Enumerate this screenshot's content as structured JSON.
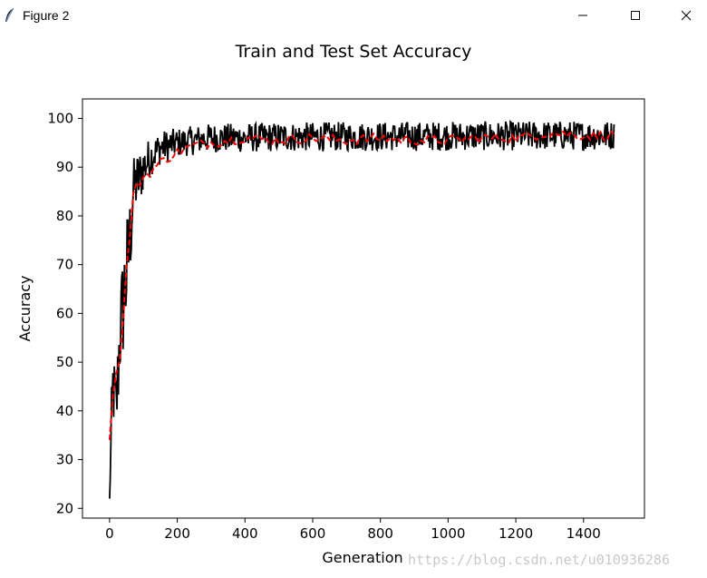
{
  "window": {
    "title": "Figure 2",
    "icon": "feather-icon",
    "controls": [
      "minimize-icon",
      "maximize-icon",
      "close-icon"
    ]
  },
  "chart_data": {
    "type": "line",
    "title": "Train and Test Set Accuracy",
    "xlabel": "Generation",
    "ylabel": "Accuracy",
    "xlim": [
      -80,
      1580
    ],
    "ylim": [
      18,
      104
    ],
    "xticks": [
      0,
      200,
      400,
      600,
      800,
      1000,
      1200,
      1400
    ],
    "yticks": [
      20,
      30,
      40,
      50,
      60,
      70,
      80,
      90,
      100
    ],
    "grid": false,
    "series": [
      {
        "style": "solid",
        "color": "#000000",
        "description_points": {
          "x": [
            0,
            5,
            10,
            20,
            30,
            40,
            50,
            60,
            70,
            80,
            90,
            100,
            120,
            150,
            200,
            250,
            300,
            400,
            500,
            600,
            700,
            800,
            900,
            1000,
            1100,
            1200,
            1300,
            1400,
            1490
          ],
          "y": [
            22,
            35,
            45,
            40,
            55,
            62,
            68,
            75,
            85,
            87,
            88,
            90,
            92,
            94,
            95,
            95.5,
            96,
            96,
            96.2,
            96.2,
            96.3,
            96.3,
            96.3,
            96.4,
            96.4,
            96.4,
            96.5,
            96.5,
            96.5
          ],
          "noise": [
            0,
            8,
            8,
            8,
            10,
            12,
            12,
            10,
            7,
            6,
            6,
            5,
            4,
            3.5,
            3,
            3,
            3,
            3,
            3,
            3,
            3,
            3,
            3,
            3,
            3,
            3,
            3,
            3,
            3
          ]
        }
      },
      {
        "style": "dashed",
        "color": "#ff0000",
        "description_points": {
          "x": [
            0,
            10,
            20,
            30,
            40,
            50,
            60,
            70,
            80,
            90,
            100,
            120,
            150,
            200,
            250,
            300,
            400,
            500,
            600,
            700,
            800,
            900,
            1000,
            1100,
            1200,
            1300,
            1400,
            1490
          ],
          "y": [
            35,
            44,
            47,
            53,
            58,
            68,
            77,
            84,
            86,
            87,
            88,
            89,
            91,
            93,
            94.5,
            95,
            96,
            95.5,
            96,
            95.5,
            96,
            95.5,
            95.5,
            96,
            96,
            97,
            96.5,
            96.5
          ],
          "noise": [
            1,
            2,
            2,
            3,
            3,
            3,
            2,
            1.5,
            1,
            1,
            1,
            1,
            1,
            1,
            1,
            1,
            1,
            1,
            1,
            1,
            1,
            1,
            1,
            1,
            1,
            1,
            1,
            1
          ]
        }
      }
    ]
  },
  "watermark": "https://blog.csdn.net/u010936286"
}
